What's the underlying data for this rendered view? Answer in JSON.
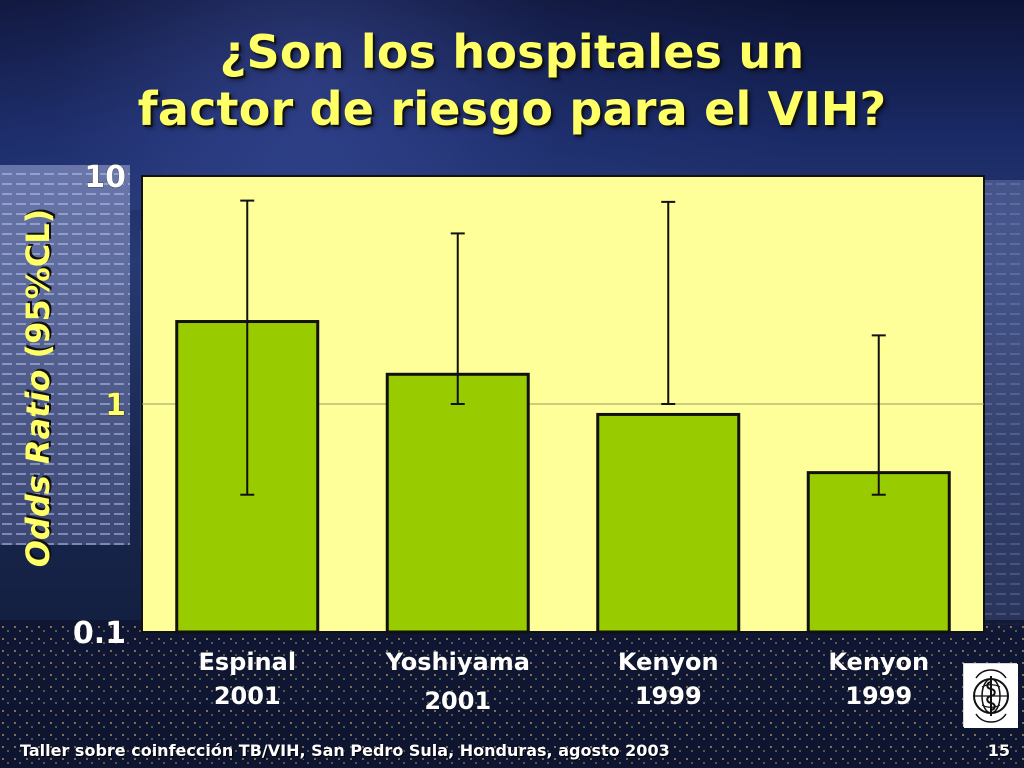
{
  "slide": {
    "title_line_1": "¿Son los hospitales un",
    "title_line_2": "factor de riesgo para el VIH?",
    "footer_text": "Taller sobre coinfección TB/VIH, San Pedro Sula, Honduras, agosto 2003",
    "page_number": "15",
    "colors": {
      "title": "#ffff66",
      "plot_background": "#ffff99",
      "bar_fill": "#99cc00",
      "tick_labels": "#ffffff",
      "highlight_tick": "#ffff66"
    }
  },
  "chart_data": {
    "type": "bar",
    "title": "¿Son los hospitales un factor de riesgo para el VIH?",
    "xlabel": "",
    "ylabel_italic": "Odds Ratio",
    "ylabel_rest": " (95%CL)",
    "categories": [
      [
        "Espinal",
        "2001"
      ],
      [
        "Yoshiyama",
        "2001"
      ],
      [
        "Kenyon",
        "1999"
      ],
      [
        "Kenyon",
        "1999"
      ]
    ],
    "values": [
      2.3,
      1.35,
      0.9,
      0.5
    ],
    "error_lower": [
      0.4,
      1.0,
      1.0,
      0.4
    ],
    "error_upper": [
      7.8,
      5.6,
      7.7,
      2.0
    ],
    "y_scale": "log",
    "ylim": [
      0.1,
      10
    ],
    "y_ticks": [
      "10",
      "1",
      "0.1"
    ],
    "reference_line": 1,
    "grid": false,
    "legend": "none"
  }
}
